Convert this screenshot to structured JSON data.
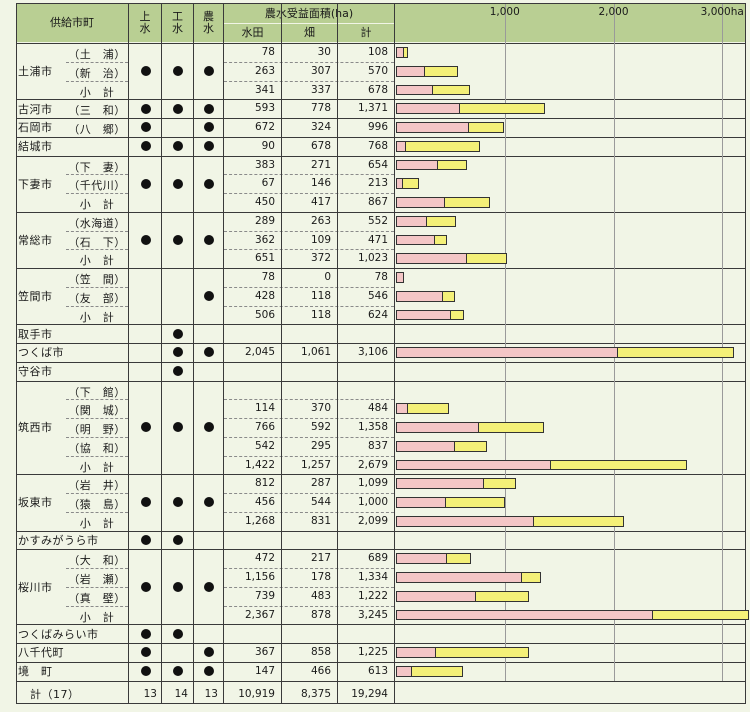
{
  "header": {
    "city": "供給市町",
    "water_supply": "上\n水",
    "industrial": "工\n水",
    "agricultural": "農\n水",
    "area_title": "農水受益面積(ha)",
    "paddy": "水田",
    "field": "畑",
    "total": "計"
  },
  "colors": {
    "paddy": "#f4c6c6",
    "field": "#f4f078",
    "header_bg": "#b9cf93",
    "page_bg": "#f1f5e6"
  },
  "chart_data": {
    "type": "bar",
    "stacked": true,
    "orientation": "horizontal",
    "xlim": [
      0,
      3200
    ],
    "ticks": [
      "1,000",
      "2,000",
      "3,000ha"
    ],
    "tick_values": [
      1000,
      2000,
      3000
    ],
    "series": [
      {
        "name": "水田",
        "color": "#f4c6c6"
      },
      {
        "name": "畑",
        "color": "#f4f078"
      }
    ],
    "rows": [
      {
        "city": "土浦市",
        "sub": "（土　浦）",
        "dots": [
          true,
          true,
          true
        ],
        "paddy": 78,
        "field": 30,
        "total": 108,
        "paddy_text": "78",
        "field_text": "30",
        "total_text": "108"
      },
      {
        "city": "",
        "sub": "（新　治）",
        "dots": [
          false,
          false,
          false
        ],
        "paddy": 263,
        "field": 307,
        "total": 570,
        "paddy_text": "263",
        "field_text": "307",
        "total_text": "570"
      },
      {
        "city": "",
        "sub": "小　計",
        "dots": [
          false,
          false,
          false
        ],
        "paddy": 341,
        "field": 337,
        "total": 678,
        "paddy_text": "341",
        "field_text": "337",
        "total_text": "678"
      },
      {
        "city": "古河市",
        "sub": "（三　和）",
        "dots": [
          true,
          true,
          true
        ],
        "paddy": 593,
        "field": 778,
        "total": 1371,
        "paddy_text": "593",
        "field_text": "778",
        "total_text": "1,371"
      },
      {
        "city": "石岡市",
        "sub": "（八　郷）",
        "dots": [
          true,
          false,
          true
        ],
        "paddy": 672,
        "field": 324,
        "total": 996,
        "paddy_text": "672",
        "field_text": "324",
        "total_text": "996"
      },
      {
        "city": "結城市",
        "sub": "",
        "dots": [
          true,
          true,
          true
        ],
        "paddy": 90,
        "field": 678,
        "total": 768,
        "paddy_text": "90",
        "field_text": "678",
        "total_text": "768"
      },
      {
        "city": "下妻市",
        "sub": "（下　妻）",
        "dots": [
          true,
          true,
          true
        ],
        "paddy": 383,
        "field": 271,
        "total": 654,
        "paddy_text": "383",
        "field_text": "271",
        "total_text": "654"
      },
      {
        "city": "",
        "sub": "（千代川）",
        "dots": [
          false,
          false,
          false
        ],
        "paddy": 67,
        "field": 146,
        "total": 213,
        "paddy_text": "67",
        "field_text": "146",
        "total_text": "213"
      },
      {
        "city": "",
        "sub": "小　計",
        "dots": [
          false,
          false,
          false
        ],
        "paddy": 450,
        "field": 417,
        "total": 867,
        "paddy_text": "450",
        "field_text": "417",
        "total_text": "867"
      },
      {
        "city": "常総市",
        "sub": "（水海道）",
        "dots": [
          true,
          true,
          true
        ],
        "paddy": 289,
        "field": 263,
        "total": 552,
        "paddy_text": "289",
        "field_text": "263",
        "total_text": "552"
      },
      {
        "city": "",
        "sub": "（石　下）",
        "dots": [
          false,
          false,
          false
        ],
        "paddy": 362,
        "field": 109,
        "total": 471,
        "paddy_text": "362",
        "field_text": "109",
        "total_text": "471"
      },
      {
        "city": "",
        "sub": "小　計",
        "dots": [
          false,
          false,
          false
        ],
        "paddy": 651,
        "field": 372,
        "total": 1023,
        "paddy_text": "651",
        "field_text": "372",
        "total_text": "1,023"
      },
      {
        "city": "笠間市",
        "sub": "（笠　間）",
        "dots": [
          false,
          false,
          true
        ],
        "paddy": 78,
        "field": 0,
        "total": 78,
        "paddy_text": "78",
        "field_text": "0",
        "total_text": "78"
      },
      {
        "city": "",
        "sub": "（友　部）",
        "dots": [
          false,
          false,
          false
        ],
        "paddy": 428,
        "field": 118,
        "total": 546,
        "paddy_text": "428",
        "field_text": "118",
        "total_text": "546"
      },
      {
        "city": "",
        "sub": "小　計",
        "dots": [
          false,
          false,
          false
        ],
        "paddy": 506,
        "field": 118,
        "total": 624,
        "paddy_text": "506",
        "field_text": "118",
        "total_text": "624"
      },
      {
        "city": "取手市",
        "sub": "",
        "dots": [
          false,
          true,
          false
        ],
        "paddy": 0,
        "field": 0,
        "total": 0,
        "paddy_text": "",
        "field_text": "",
        "total_text": ""
      },
      {
        "city": "つくば市",
        "sub": "",
        "dots": [
          false,
          true,
          true
        ],
        "paddy": 2045,
        "field": 1061,
        "total": 3106,
        "paddy_text": "2,045",
        "field_text": "1,061",
        "total_text": "3,106"
      },
      {
        "city": "守谷市",
        "sub": "",
        "dots": [
          false,
          true,
          false
        ],
        "paddy": 0,
        "field": 0,
        "total": 0,
        "paddy_text": "",
        "field_text": "",
        "total_text": ""
      },
      {
        "city": "",
        "sub": "（下　館）",
        "dots": [
          false,
          false,
          false
        ],
        "paddy": 0,
        "field": 0,
        "total": 0,
        "paddy_text": "",
        "field_text": "",
        "total_text": ""
      },
      {
        "city": "",
        "sub": "（関　城）",
        "dots": [
          false,
          false,
          false
        ],
        "paddy": 114,
        "field": 370,
        "total": 484,
        "paddy_text": "114",
        "field_text": "370",
        "total_text": "484"
      },
      {
        "city": "筑西市",
        "sub": "（明　野）",
        "dots": [
          true,
          true,
          true
        ],
        "paddy": 766,
        "field": 592,
        "total": 1358,
        "paddy_text": "766",
        "field_text": "592",
        "total_text": "1,358"
      },
      {
        "city": "",
        "sub": "（協　和）",
        "dots": [
          false,
          false,
          false
        ],
        "paddy": 542,
        "field": 295,
        "total": 837,
        "paddy_text": "542",
        "field_text": "295",
        "total_text": "837"
      },
      {
        "city": "",
        "sub": "小　計",
        "dots": [
          false,
          false,
          false
        ],
        "paddy": 1422,
        "field": 1257,
        "total": 2679,
        "paddy_text": "1,422",
        "field_text": "1,257",
        "total_text": "2,679"
      },
      {
        "city": "",
        "sub": "（岩　井）",
        "dots": [
          false,
          false,
          false
        ],
        "paddy": 812,
        "field": 287,
        "total": 1099,
        "paddy_text": "812",
        "field_text": "287",
        "total_text": "1,099"
      },
      {
        "city": "坂東市",
        "sub": "（猿　島）",
        "dots": [
          true,
          true,
          true
        ],
        "paddy": 456,
        "field": 544,
        "total": 1000,
        "paddy_text": "456",
        "field_text": "544",
        "total_text": "1,000"
      },
      {
        "city": "",
        "sub": "小　計",
        "dots": [
          false,
          false,
          false
        ],
        "paddy": 1268,
        "field": 831,
        "total": 2099,
        "paddy_text": "1,268",
        "field_text": "831",
        "total_text": "2,099"
      },
      {
        "city": "かすみがうら市",
        "sub": "",
        "dots": [
          true,
          true,
          false
        ],
        "paddy": 0,
        "field": 0,
        "total": 0,
        "paddy_text": "",
        "field_text": "",
        "total_text": ""
      },
      {
        "city": "",
        "sub": "（大　和）",
        "dots": [
          false,
          false,
          false
        ],
        "paddy": 472,
        "field": 217,
        "total": 689,
        "paddy_text": "472",
        "field_text": "217",
        "total_text": "689"
      },
      {
        "city": "桜川市",
        "sub": "（岩　瀬）",
        "dots": [
          true,
          true,
          true
        ],
        "paddy": 1156,
        "field": 178,
        "total": 1334,
        "paddy_text": "1,156",
        "field_text": "178",
        "total_text": "1,334"
      },
      {
        "city": "",
        "sub": "（真　壁）",
        "dots": [
          false,
          false,
          false
        ],
        "paddy": 739,
        "field": 483,
        "total": 1222,
        "paddy_text": "739",
        "field_text": "483",
        "total_text": "1,222"
      },
      {
        "city": "",
        "sub": "小　計",
        "dots": [
          false,
          false,
          false
        ],
        "paddy": 2367,
        "field": 878,
        "total": 3245,
        "paddy_text": "2,367",
        "field_text": "878",
        "total_text": "3,245"
      },
      {
        "city": "つくばみらい市",
        "sub": "",
        "dots": [
          true,
          true,
          false
        ],
        "paddy": 0,
        "field": 0,
        "total": 0,
        "paddy_text": "",
        "field_text": "",
        "total_text": ""
      },
      {
        "city": "八千代町",
        "sub": "",
        "dots": [
          true,
          false,
          true
        ],
        "paddy": 367,
        "field": 858,
        "total": 1225,
        "paddy_text": "367",
        "field_text": "858",
        "total_text": "1,225"
      },
      {
        "city": "境　町",
        "sub": "",
        "dots": [
          true,
          true,
          true
        ],
        "paddy": 147,
        "field": 466,
        "total": 613,
        "paddy_text": "147",
        "field_text": "466",
        "total_text": "613"
      }
    ],
    "totals": {
      "label": "計（17）",
      "water_supply": "13",
      "industrial": "14",
      "agricultural": "13",
      "paddy": "10,919",
      "field": "8,375",
      "total": "19,294"
    }
  }
}
